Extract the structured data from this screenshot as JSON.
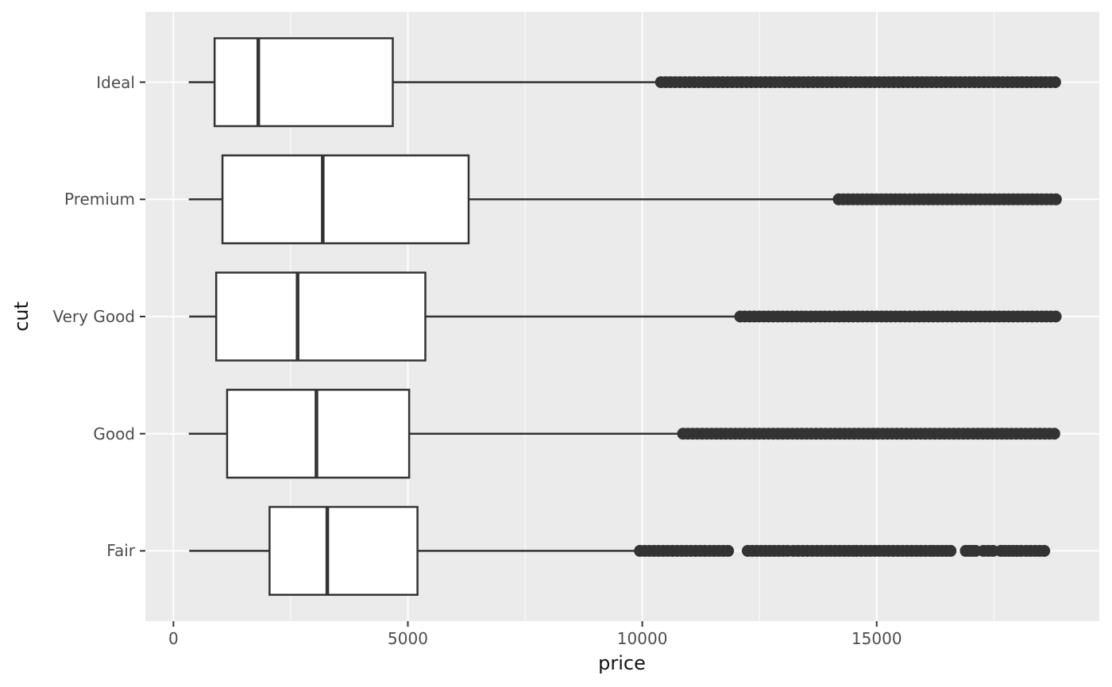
{
  "labels": {
    "x": "price",
    "y": "cut"
  },
  "chart_data": {
    "type": "boxplot",
    "orientation": "horizontal",
    "title": "",
    "xlabel": "price",
    "ylabel": "cut",
    "xlim": [
      -599,
      19748
    ],
    "x_major_ticks": [
      0,
      5000,
      10000,
      15000
    ],
    "x_minor_ticks": [
      2500,
      7500,
      12500,
      17500
    ],
    "grid": "on",
    "categories_top_to_bottom": [
      "Ideal",
      "Premium",
      "Very Good",
      "Good",
      "Fair"
    ],
    "series": [
      {
        "label": "Ideal",
        "whisker_low": 326,
        "q1": 878,
        "median": 1810,
        "q3": 4678.5,
        "whisker_high": 10372,
        "outlier_segments": [
          [
            10400,
            18806
          ]
        ]
      },
      {
        "label": "Premium",
        "whisker_low": 326,
        "q1": 1046,
        "median": 3185,
        "q3": 6296,
        "whisker_high": 14160,
        "outlier_segments": [
          [
            14190,
            18823
          ]
        ]
      },
      {
        "label": "Very Good",
        "whisker_low": 336,
        "q1": 912,
        "median": 2648,
        "q3": 5372.75,
        "whisker_high": 12060,
        "outlier_segments": [
          [
            12090,
            18818
          ]
        ]
      },
      {
        "label": "Good",
        "whisker_low": 327,
        "q1": 1145,
        "median": 3050.5,
        "q3": 5028,
        "whisker_high": 10845,
        "outlier_segments": [
          [
            10870,
            16950
          ],
          [
            17060,
            18788
          ]
        ]
      },
      {
        "label": "Fair",
        "whisker_low": 337,
        "q1": 2050.25,
        "median": 3282,
        "q3": 5205.5,
        "whisker_high": 9930,
        "outlier_segments": [
          [
            9950,
            11830
          ],
          [
            12250,
            13100
          ],
          [
            13220,
            13930
          ],
          [
            14020,
            14500
          ],
          [
            14570,
            16140
          ],
          [
            16210,
            16575
          ],
          [
            16900,
            17110
          ],
          [
            17280,
            17480
          ],
          [
            17650,
            18080
          ],
          [
            18190,
            18574
          ]
        ]
      }
    ],
    "style": {
      "panel_background": "#EBEBEB",
      "grid_color": "#FFFFFF",
      "line_color": "#333333",
      "box_fill": "#FFFFFF",
      "tick_label_color": "#4D4D4D",
      "axis_title_color": "#111111",
      "figure_background": "#FFFFFF"
    }
  }
}
